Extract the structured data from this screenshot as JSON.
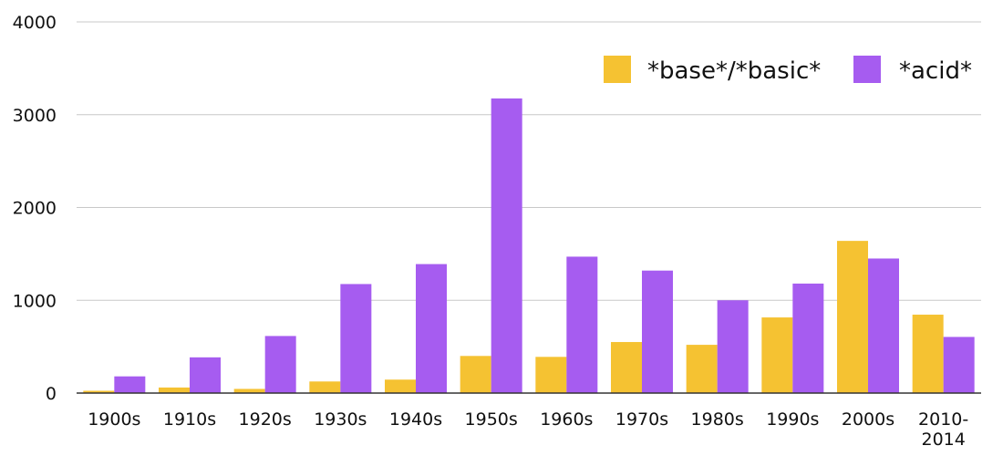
{
  "chart_data": {
    "type": "bar",
    "categories": [
      "1900s",
      "1910s",
      "1920s",
      "1930s",
      "1940s",
      "1950s",
      "1960s",
      "1970s",
      "1980s",
      "1990s",
      "2000s",
      "2010-\n2014"
    ],
    "series": [
      {
        "name": "*base*/*basic*",
        "color": "#f5c232",
        "values": [
          25,
          60,
          45,
          125,
          145,
          400,
          390,
          550,
          520,
          815,
          1640,
          845
        ]
      },
      {
        "name": "*acid*",
        "color": "#a65cf0",
        "values": [
          180,
          385,
          615,
          1175,
          1390,
          3175,
          1470,
          1320,
          1000,
          1180,
          1450,
          605
        ]
      }
    ],
    "yticks": [
      0,
      1000,
      2000,
      3000,
      4000
    ],
    "ylim": [
      0,
      4000
    ],
    "grid": true,
    "legend_position": "top-right",
    "title": "",
    "xlabel": "",
    "ylabel": ""
  }
}
